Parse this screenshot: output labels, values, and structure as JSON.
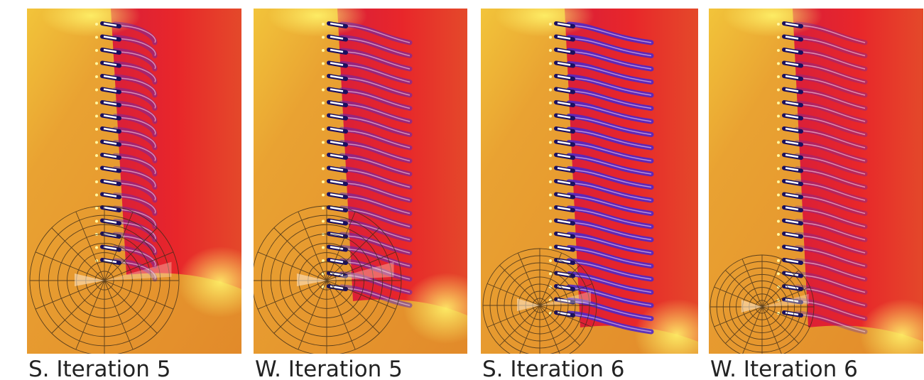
{
  "panels": [
    {
      "caption": "S. Iteration 5"
    },
    {
      "caption": "W. Iteration 5"
    },
    {
      "caption": "S. Iteration 6"
    },
    {
      "caption": "W. Iteration 6"
    }
  ]
}
